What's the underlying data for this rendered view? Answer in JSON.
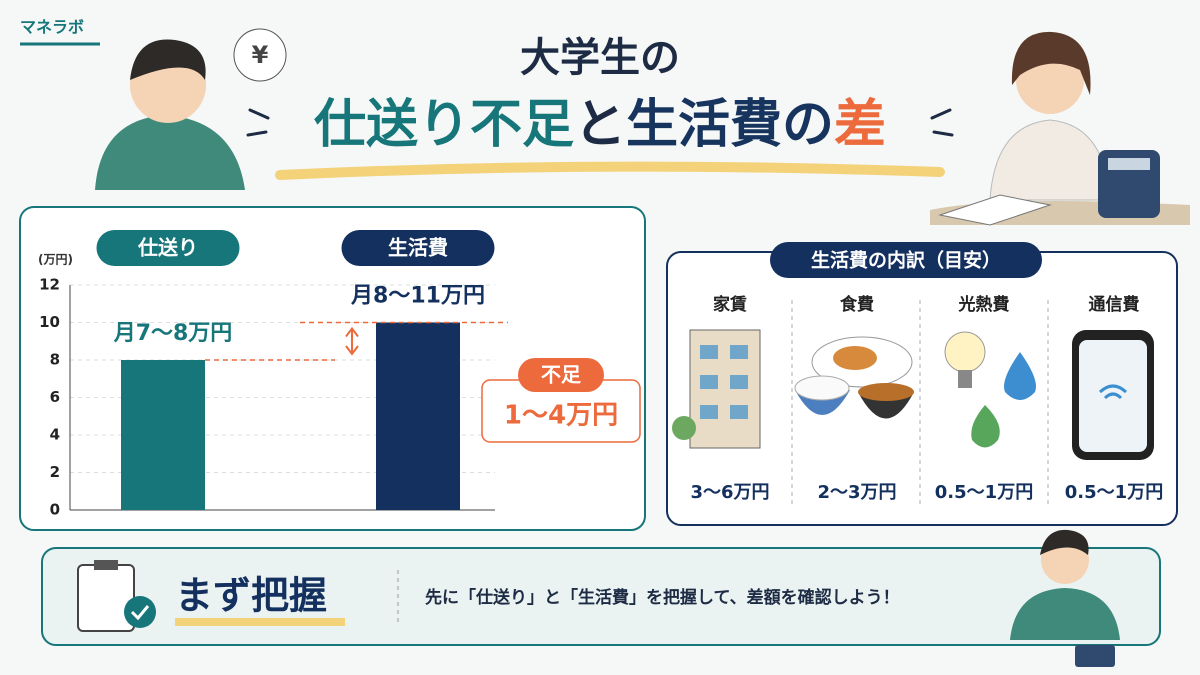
{
  "logo": "マネラボ",
  "title_line1": "大学生の",
  "title_parts": [
    {
      "text": "仕送り不足",
      "color": "#17767a"
    },
    {
      "text": "と",
      "color": "#1d2b44"
    },
    {
      "text": "生活費の",
      "color": "#17345f"
    },
    {
      "text": "差",
      "color": "#ec6a3c"
    }
  ],
  "chart_data": {
    "type": "bar",
    "y_unit": "(万円)",
    "categories": [
      "仕送り",
      "生活費"
    ],
    "values": [
      8,
      10
    ],
    "colors": [
      "#17767a",
      "#14305e"
    ],
    "annotations": [
      "月7〜8万円",
      "月8〜11万円"
    ],
    "ylim": [
      0,
      12
    ],
    "yticks": [
      0,
      2,
      4,
      6,
      8,
      10,
      12
    ],
    "grid": true,
    "gap_label": "不足",
    "gap_value": "1〜4万円"
  },
  "breakdown": {
    "title": "生活費の内訳（目安）",
    "items": [
      {
        "label": "家賃",
        "amount": "3〜6万円"
      },
      {
        "label": "食費",
        "amount": "2〜3万円"
      },
      {
        "label": "光熱費",
        "amount": "0.5〜1万円"
      },
      {
        "label": "通信費",
        "amount": "0.5〜1万円"
      }
    ]
  },
  "footer": {
    "heading": "まず把握",
    "message": "先に「仕送り」と「生活費」を把握して、差額を確認しよう！"
  }
}
